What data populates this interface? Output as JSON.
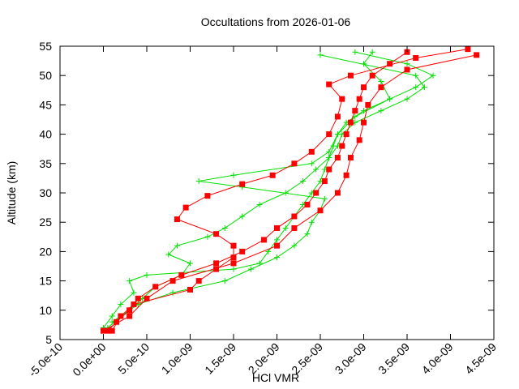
{
  "chart_data": {
    "type": "scatter-line",
    "title": "Occultations from 2026-01-06",
    "x_label": "HCl VMR",
    "y_label": "Altitude (km)",
    "xlim": [
      -5e-10,
      4.5e-09
    ],
    "ylim": [
      5,
      55
    ],
    "xticks": [
      {
        "value": -5e-10,
        "label": "-5.0e-10"
      },
      {
        "value": 0,
        "label": "0.0e+00"
      },
      {
        "value": 5e-10,
        "label": "5.0e-10"
      },
      {
        "value": 1e-09,
        "label": "1.0e-09"
      },
      {
        "value": 1.5e-09,
        "label": "1.5e-09"
      },
      {
        "value": 2e-09,
        "label": "2.0e-09"
      },
      {
        "value": 2.5e-09,
        "label": "2.5e-09"
      },
      {
        "value": 3e-09,
        "label": "3.0e-09"
      },
      {
        "value": 3.5e-09,
        "label": "3.5e-09"
      },
      {
        "value": 4e-09,
        "label": "4.0e-09"
      },
      {
        "value": 4.5e-09,
        "label": "4.5e-09"
      }
    ],
    "yticks": [
      5,
      10,
      15,
      20,
      25,
      30,
      35,
      40,
      45,
      50,
      55
    ],
    "series": [
      {
        "color": "#00e000",
        "marker": "plus",
        "x": [
          0,
          1e-10,
          2e-10,
          3.5e-10,
          3e-10,
          5e-10,
          1.5e-09,
          1.8e-09,
          1.9e-09,
          2e-09,
          2.1e-09,
          2.2e-09,
          2.3e-09,
          2.4e-09,
          2.5e-09,
          2.55e-09,
          2.6e-09,
          2.65e-09,
          2.7e-09,
          2.8e-09,
          3e-09,
          3.3e-09,
          3.6e-09,
          3.8e-09,
          3.5e-09,
          2.9e-09
        ],
        "values": [
          7,
          9,
          11,
          13,
          15,
          16,
          17,
          18,
          20,
          22,
          24,
          26,
          28,
          30,
          32,
          34,
          36,
          38,
          40,
          42,
          44,
          46,
          48,
          50,
          52,
          54
        ]
      },
      {
        "color": "#00e000",
        "marker": "plus",
        "x": [
          1e-10,
          3e-10,
          4.5e-10,
          6e-10,
          9e-10,
          1e-09,
          7.5e-10,
          8.5e-10,
          1.2e-09,
          1.4e-09,
          1.6e-09,
          1.8e-09,
          2.1e-09,
          2.3e-09,
          2.45e-09,
          2.6e-09,
          2.7e-09,
          2.75e-09,
          2.9e-09,
          3.2e-09,
          3.5e-09,
          3.7e-09,
          3.6e-09,
          2.5e-09
        ],
        "values": [
          8,
          10,
          12,
          14,
          16,
          18,
          19.5,
          21,
          22.5,
          24,
          26,
          28,
          30,
          32,
          34,
          36,
          38,
          40,
          42,
          44,
          46,
          48,
          50,
          53.5
        ]
      },
      {
        "color": "#00e000",
        "marker": "plus",
        "x": [
          5e-11,
          2e-10,
          4e-10,
          8e-10,
          1.4e-09,
          1.7e-09,
          2e-09,
          2.2e-09,
          2.35e-09,
          2.4e-09,
          2.5e-09,
          2.55e-09,
          1.6e-09,
          1.1e-09,
          1.5e-09,
          2.4e-09,
          2.6e-09,
          2.7e-09,
          2.9e-09,
          3.3e-09,
          3.2e-09,
          3e-09,
          3.1e-09
        ],
        "values": [
          7,
          9,
          11,
          13,
          15,
          17,
          19,
          21,
          23,
          25,
          27,
          29,
          31,
          32,
          33,
          35,
          37,
          40,
          43,
          46,
          49,
          52,
          54
        ]
      },
      {
        "color": "#ff0000",
        "marker": "square",
        "x": [
          5e-11,
          1.5e-10,
          3e-10,
          4e-10,
          6e-10,
          9e-10,
          1.3e-09,
          1.6e-09,
          1.85e-09,
          2e-09,
          2.2e-09,
          2.35e-09,
          2.45e-09,
          2.55e-09,
          2.6e-09,
          2.7e-09,
          2.75e-09,
          2.8e-09,
          2.85e-09,
          2.9e-09,
          2.95e-09,
          3e-09,
          3.1e-09,
          3.3e-09,
          3.5e-09
        ],
        "values": [
          6.5,
          8,
          10,
          12,
          14,
          16,
          18,
          20,
          22,
          24,
          26,
          28,
          30,
          32,
          34,
          36,
          38,
          40,
          42,
          44,
          46,
          48,
          50,
          52,
          54
        ]
      },
      {
        "color": "#ff0000",
        "marker": "square",
        "x": [
          1e-10,
          2e-10,
          3.5e-10,
          1e-09,
          1.1e-09,
          1.3e-09,
          1.5e-09,
          1.5e-09,
          1.3e-09,
          8.5e-10,
          9.5e-10,
          1.2e-09,
          1.6e-09,
          1.95e-09,
          2.2e-09,
          2.4e-09,
          2.6e-09,
          2.7e-09,
          2.75e-09,
          2.6e-09,
          2.85e-09,
          3.6e-09,
          4.2e-09
        ],
        "values": [
          6.5,
          9,
          11,
          13.5,
          15,
          17,
          19,
          21,
          23,
          25.5,
          27.5,
          29.5,
          31.5,
          33,
          35,
          37,
          40,
          43,
          46,
          48.5,
          50,
          53,
          54.5
        ]
      },
      {
        "color": "#ff0000",
        "marker": "square",
        "x": [
          0,
          3e-10,
          5e-10,
          8e-10,
          1.5e-09,
          2e-09,
          2.2e-09,
          2.5e-09,
          2.7e-09,
          2.8e-09,
          2.85e-09,
          2.95e-09,
          3e-09,
          3.05e-09,
          3.2e-09,
          3.5e-09,
          4.3e-09
        ],
        "values": [
          6.5,
          9,
          12,
          15,
          18,
          21,
          24,
          27,
          30,
          33,
          36,
          39,
          42,
          45,
          48,
          51,
          53.5
        ]
      }
    ]
  }
}
